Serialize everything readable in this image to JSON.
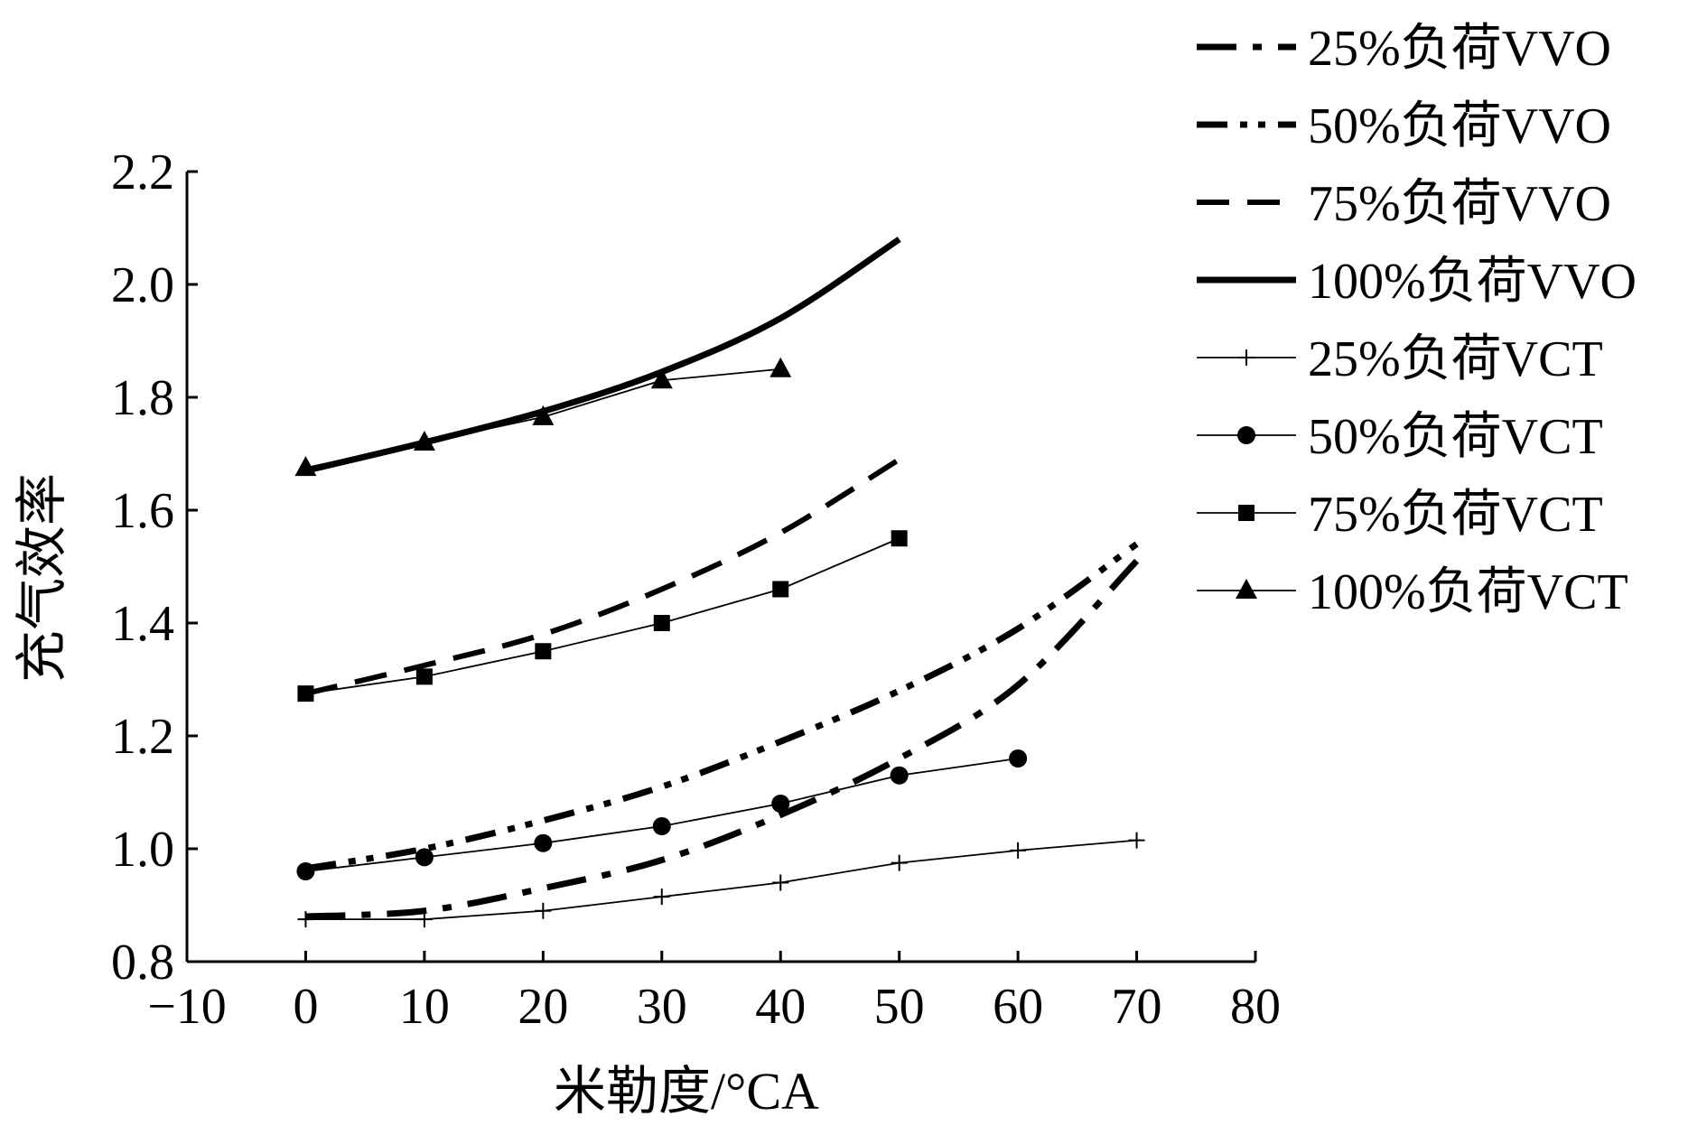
{
  "chart_data": {
    "type": "line",
    "title": "",
    "xlabel": "米勒度/°CA",
    "ylabel": "充气效率",
    "xlim": [
      -10,
      80
    ],
    "ylim": [
      0.8,
      2.2
    ],
    "xticks": [
      -10,
      0,
      10,
      20,
      30,
      40,
      50,
      60,
      70,
      80
    ],
    "yticks": [
      0.8,
      1.0,
      1.2,
      1.4,
      1.6,
      1.8,
      2.0,
      2.2
    ],
    "x_tick_labels": [
      "−10",
      "0",
      "10",
      "20",
      "30",
      "40",
      "50",
      "60",
      "70",
      "80"
    ],
    "y_tick_labels": [
      "0.8",
      "1.0",
      "1.2",
      "1.4",
      "1.6",
      "1.8",
      "2.0",
      "2.2"
    ],
    "grid": false,
    "legend_position": "right",
    "series": [
      {
        "name": "25%负荷VVO",
        "style": "dash-dot",
        "marker": "none",
        "x": [
          0,
          10,
          20,
          30,
          40,
          50,
          60,
          70
        ],
        "y": [
          0.88,
          0.89,
          0.93,
          0.98,
          1.06,
          1.16,
          1.29,
          1.51
        ]
      },
      {
        "name": "50%负荷VVO",
        "style": "dash-dot-dot",
        "marker": "none",
        "x": [
          0,
          10,
          20,
          30,
          40,
          50,
          60,
          70
        ],
        "y": [
          0.965,
          1.0,
          1.05,
          1.11,
          1.19,
          1.28,
          1.39,
          1.54
        ]
      },
      {
        "name": "75%负荷VVO",
        "style": "dashed",
        "marker": "none",
        "x": [
          0,
          10,
          20,
          30,
          40,
          50
        ],
        "y": [
          1.275,
          1.325,
          1.38,
          1.46,
          1.56,
          1.69
        ]
      },
      {
        "name": "100%负荷VVO",
        "style": "solid-bold",
        "marker": "none",
        "x": [
          0,
          10,
          20,
          30,
          40,
          50
        ],
        "y": [
          1.67,
          1.72,
          1.775,
          1.845,
          1.94,
          2.08
        ]
      },
      {
        "name": "25%负荷VCT",
        "style": "solid-thin",
        "marker": "plus",
        "x": [
          0,
          10,
          20,
          30,
          40,
          50,
          60,
          70
        ],
        "y": [
          0.875,
          0.875,
          0.89,
          0.915,
          0.94,
          0.975,
          0.997,
          1.015
        ]
      },
      {
        "name": "50%负荷VCT",
        "style": "solid-thin",
        "marker": "circle",
        "x": [
          0,
          10,
          20,
          30,
          40,
          50,
          60
        ],
        "y": [
          0.96,
          0.985,
          1.01,
          1.04,
          1.08,
          1.13,
          1.16
        ]
      },
      {
        "name": "75%负荷VCT",
        "style": "solid-thin",
        "marker": "square",
        "x": [
          0,
          10,
          20,
          30,
          40,
          50
        ],
        "y": [
          1.275,
          1.305,
          1.35,
          1.4,
          1.46,
          1.55
        ]
      },
      {
        "name": "100%负荷VCT",
        "style": "solid-thin",
        "marker": "triangle",
        "x": [
          0,
          10,
          20,
          30,
          40
        ],
        "y": [
          1.675,
          1.72,
          1.765,
          1.83,
          1.85
        ]
      }
    ]
  }
}
